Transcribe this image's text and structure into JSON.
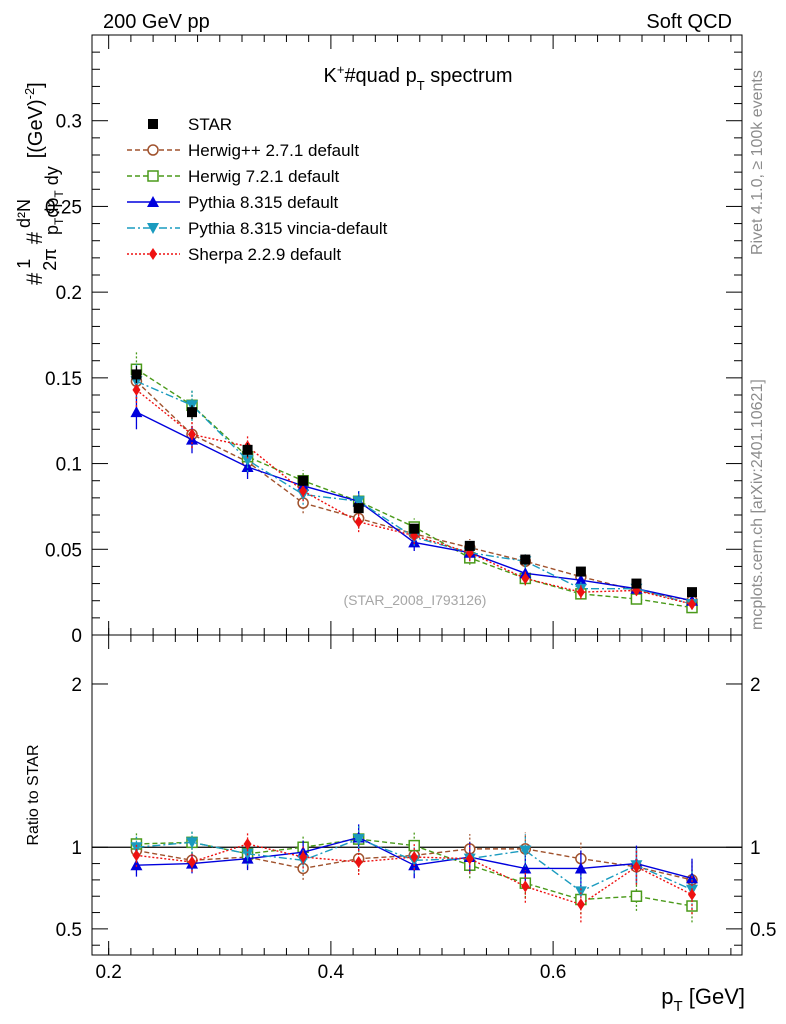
{
  "header": {
    "left": "200 GeV pp",
    "right": "Soft QCD"
  },
  "side_labels": {
    "rivet": "Rivet 4.1.0, ≥ 100k events",
    "mcplots": "mcplots.cern.ch [arXiv:2401.10621]"
  },
  "chart_data": [
    {
      "type": "line",
      "title": "K⁺#quad p_T spectrum",
      "title_parts": {
        "k": "K",
        "sup": "+",
        "mid": "#quad p",
        "sub": "T",
        "tail": " spectrum"
      },
      "watermark": "(STAR_2008_I793126)",
      "ylabel": "#1/2π # d²N/(p_T dp_T dy) [(GeV)⁻²]",
      "ylabel_parts": {
        "hash1": "#",
        "one": "1",
        "twopi": "2π",
        "hash2": "#",
        "d2n": "d²N",
        "den": "p",
        "sub1": "T",
        "dp": "dp",
        "sub2": "T",
        "dy": " dy",
        "unit": "[(GeV)",
        "exp": "-2",
        "close": "]"
      },
      "ylim": [
        0,
        0.35
      ],
      "xlim": [
        0.185,
        0.77
      ],
      "yticks": [
        0,
        0.05,
        0.1,
        0.15,
        0.2,
        0.25,
        0.3
      ],
      "ytick_labels": [
        "0",
        "0.05",
        "0.1",
        "0.15",
        "0.2",
        "0.25",
        "0.3"
      ],
      "x": [
        0.225,
        0.275,
        0.325,
        0.375,
        0.425,
        0.475,
        0.525,
        0.575,
        0.625,
        0.675,
        0.725
      ],
      "series": [
        {
          "name": "STAR",
          "color": "#000000",
          "marker": "square-filled",
          "dash": "",
          "values": [
            0.152,
            0.13,
            0.108,
            0.09,
            0.074,
            0.062,
            0.052,
            0.044,
            0.037,
            0.03,
            0.025
          ],
          "err": [
            0.005,
            0.004,
            0.004,
            0.003,
            0.003,
            0.002,
            0.002,
            0.002,
            0.002,
            0.001,
            0.001
          ]
        },
        {
          "name": "Herwig++ 2.7.1 default",
          "color": "#a0522d",
          "marker": "circle-open",
          "dash": "5,3",
          "values": [
            0.148,
            0.117,
            0.101,
            0.077,
            0.068,
            0.059,
            0.051,
            0.043,
            0.034,
            0.026,
            0.02
          ],
          "err": [
            0.01,
            0.008,
            0.007,
            0.006,
            0.006,
            0.005,
            0.005,
            0.004,
            0.004,
            0.003,
            0.003
          ]
        },
        {
          "name": "Herwig 7.2.1 default",
          "color": "#4a9a1a",
          "marker": "square-open",
          "dash": "5,3",
          "values": [
            0.155,
            0.134,
            0.104,
            0.09,
            0.078,
            0.063,
            0.045,
            0.033,
            0.024,
            0.021,
            0.016
          ],
          "err": [
            0.01,
            0.009,
            0.007,
            0.006,
            0.006,
            0.005,
            0.004,
            0.004,
            0.003,
            0.003,
            0.003
          ]
        },
        {
          "name": "Pythia 8.315 default",
          "color": "#0000dd",
          "marker": "triangle-up",
          "dash": "",
          "values": [
            0.13,
            0.114,
            0.098,
            0.087,
            0.078,
            0.054,
            0.048,
            0.036,
            0.032,
            0.027,
            0.02
          ],
          "err": [
            0.01,
            0.008,
            0.007,
            0.006,
            0.006,
            0.005,
            0.005,
            0.004,
            0.004,
            0.003,
            0.003
          ]
        },
        {
          "name": "Pythia 8.315 vincia-default",
          "color": "#1a9bbf",
          "marker": "triangle-down",
          "dash": "8,3,2,3",
          "values": [
            0.148,
            0.134,
            0.102,
            0.082,
            0.078,
            0.057,
            0.048,
            0.043,
            0.027,
            0.027,
            0.018
          ],
          "err": [
            0.01,
            0.009,
            0.007,
            0.006,
            0.006,
            0.005,
            0.005,
            0.004,
            0.004,
            0.003,
            0.003
          ]
        },
        {
          "name": "Sherpa 2.2.9 default",
          "color": "#ee1111",
          "marker": "diamond",
          "dash": "2,2",
          "values": [
            0.143,
            0.117,
            0.11,
            0.084,
            0.066,
            0.058,
            0.048,
            0.033,
            0.025,
            0.026,
            0.018
          ],
          "err": [
            0.01,
            0.008,
            0.007,
            0.006,
            0.006,
            0.005,
            0.005,
            0.004,
            0.004,
            0.003,
            0.003
          ]
        }
      ]
    },
    {
      "type": "line",
      "title": "",
      "ylabel": "Ratio to STAR",
      "xlabel": "p_T [GeV]",
      "xlabel_parts": {
        "p": "p",
        "sub": "T",
        "unit": " [GeV]"
      },
      "ylim": [
        0.34,
        2.3
      ],
      "yticks": [
        0.5,
        1,
        2
      ],
      "ytick_labels": [
        "0.5",
        "1",
        "2"
      ],
      "xticks": [
        0.2,
        0.4,
        0.6
      ],
      "xtick_labels": [
        "0.2",
        "0.4",
        "0.6"
      ],
      "reference": 1,
      "x": [
        0.225,
        0.275,
        0.325,
        0.375,
        0.425,
        0.475,
        0.525,
        0.575,
        0.625,
        0.675,
        0.725
      ],
      "series": [
        {
          "name": "Herwig++ 2.7.1 default",
          "values": [
            0.98,
            0.92,
            0.94,
            0.87,
            0.93,
            0.95,
            0.99,
            0.99,
            0.93,
            0.88,
            0.8
          ],
          "err": [
            0.07,
            0.06,
            0.07,
            0.07,
            0.08,
            0.08,
            0.09,
            0.1,
            0.11,
            0.11,
            0.12
          ]
        },
        {
          "name": "Herwig 7.2.1 default",
          "values": [
            1.02,
            1.03,
            0.96,
            1.0,
            1.05,
            1.01,
            0.89,
            0.78,
            0.68,
            0.7,
            0.64
          ],
          "err": [
            0.07,
            0.07,
            0.07,
            0.07,
            0.08,
            0.08,
            0.08,
            0.09,
            0.09,
            0.09,
            0.1
          ]
        },
        {
          "name": "Pythia 8.315 default",
          "values": [
            0.89,
            0.9,
            0.93,
            0.97,
            1.06,
            0.89,
            0.94,
            0.87,
            0.87,
            0.9,
            0.81
          ],
          "err": [
            0.07,
            0.06,
            0.07,
            0.07,
            0.08,
            0.08,
            0.09,
            0.1,
            0.11,
            0.11,
            0.12
          ]
        },
        {
          "name": "Pythia 8.315 vincia-default",
          "values": [
            1.0,
            1.03,
            0.96,
            0.92,
            1.05,
            0.92,
            0.93,
            0.98,
            0.73,
            0.89,
            0.74
          ],
          "err": [
            0.07,
            0.07,
            0.07,
            0.07,
            0.08,
            0.08,
            0.09,
            0.1,
            0.11,
            0.11,
            0.12
          ]
        },
        {
          "name": "Sherpa 2.2.9 default",
          "values": [
            0.95,
            0.91,
            1.02,
            0.94,
            0.91,
            0.94,
            0.93,
            0.76,
            0.65,
            0.88,
            0.71
          ],
          "err": [
            0.07,
            0.06,
            0.07,
            0.07,
            0.08,
            0.08,
            0.09,
            0.1,
            0.11,
            0.11,
            0.12
          ]
        }
      ]
    }
  ]
}
